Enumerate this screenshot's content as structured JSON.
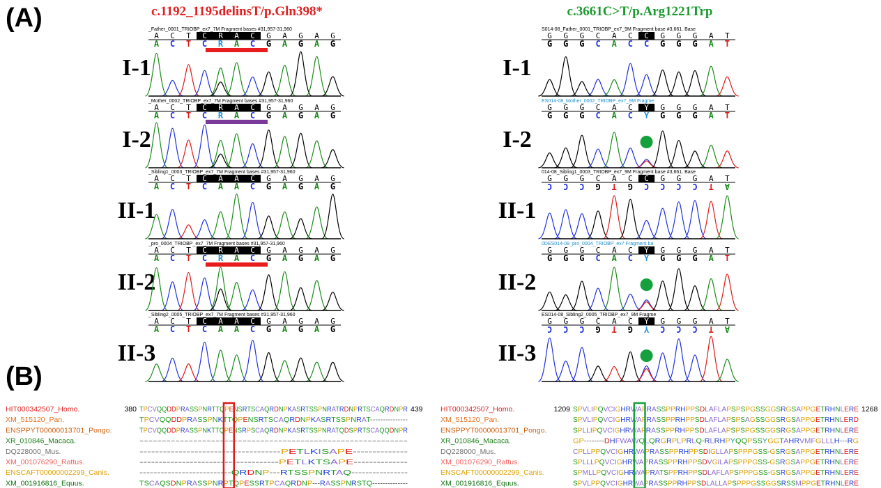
{
  "panel_a": {
    "label": "(A)",
    "left": {
      "title": "c.1192_1195delinsT/p.Gln398*",
      "tracks": [
        {
          "individual": "I-1",
          "header": "_Father_0001_TRIOBP_ex7_7M Fragment bases #31,957-31,960",
          "ref_bases": [
            "A",
            "C",
            "T",
            "C",
            "R",
            "A",
            "C",
            "G",
            "A",
            "G",
            "A",
            "G"
          ],
          "call_bases": [
            "A",
            "C",
            "T",
            "C",
            "R",
            "A",
            "C",
            "G",
            "A",
            "G",
            "A",
            "G"
          ]
        },
        {
          "individual": "I-2",
          "header": "_Mother_0002_TRIOBP_ex7_7M Fragment bases #31,957-31,960",
          "ref_bases": [
            "A",
            "C",
            "T",
            "C",
            "R",
            "A",
            "C",
            "G",
            "A",
            "G",
            "A",
            "G"
          ],
          "call_bases": [
            "A",
            "C",
            "T",
            "C",
            "R",
            "A",
            "C",
            "G",
            "A",
            "G",
            "A",
            "G"
          ]
        },
        {
          "individual": "II-1",
          "header": "_Sibling1_0003_TRIOBP_ex7_7M Fragment bases #31,957-31,960",
          "ref_bases": [
            "A",
            "C",
            "T",
            "C",
            "A",
            "A",
            "C",
            "G",
            "A",
            "G",
            "A",
            "G"
          ],
          "call_bases": [
            "A",
            "C",
            "T",
            "C",
            "A",
            "A",
            "C",
            "G",
            "A",
            "G",
            "A",
            "G"
          ]
        },
        {
          "individual": "II-2",
          "header": "_pro_0004_TRIOBP_ex7_7M Fragment bases #31,957-31,960",
          "ref_bases": [
            "A",
            "C",
            "T",
            "C",
            "R",
            "A",
            "C",
            "G",
            "A",
            "G",
            "A",
            "G"
          ],
          "call_bases": [
            "A",
            "C",
            "T",
            "C",
            "R",
            "A",
            "C",
            "G",
            "A",
            "G",
            "A",
            "G"
          ]
        },
        {
          "individual": "II-3",
          "header": "_Sibling2_0005_TRIOBP_ex7_7M Fragment bases #31,957-31,960",
          "ref_bases": [
            "A",
            "C",
            "T",
            "C",
            "A",
            "A",
            "C",
            "G",
            "A",
            "G",
            "A",
            "G"
          ],
          "call_bases": [
            "A",
            "C",
            "T",
            "C",
            "A",
            "A",
            "C",
            "G",
            "A",
            "G",
            "A",
            "G"
          ]
        }
      ]
    },
    "right": {
      "title": "c.3661C>T/p.Arg1221Trp",
      "tracks": [
        {
          "individual": "I-1",
          "header": "S014-08_Father_0001_TRIOBP_ex7_9M Fragment base #3,661. Base",
          "ref_bases": [
            "G",
            "G",
            "G",
            "C",
            "A",
            "C",
            "C",
            "G",
            "G",
            "G",
            "A",
            "T"
          ],
          "call_bases": [
            "G",
            "G",
            "G",
            "C",
            "A",
            "C",
            "C",
            "G",
            "G",
            "G",
            "A",
            "T"
          ]
        },
        {
          "individual": "I-2",
          "header": "ES014-08_Mother_0002_TRIOBP_ex7_9M Fragme",
          "ref_bases": [
            "G",
            "G",
            "G",
            "C",
            "A",
            "C",
            "Y",
            "G",
            "G",
            "G",
            "A",
            "T"
          ],
          "call_bases": [
            "G",
            "G",
            "G",
            "C",
            "A",
            "C",
            "Y",
            "G",
            "G",
            "G",
            "A",
            "T"
          ]
        },
        {
          "individual": "II-1",
          "header": "014-08_Sibling1_0003_TRIOBP_ex7_9M Fragment base #3,661. Base",
          "ref_bases": [
            "G",
            "G",
            "G",
            "C",
            "A",
            "C",
            "C",
            "G",
            "G",
            "G",
            "A",
            "T"
          ],
          "call_bases": [
            "C",
            "C",
            "C",
            "G",
            "T",
            "G",
            "C",
            "C",
            "C",
            "C",
            "T",
            "A"
          ]
        },
        {
          "individual": "II-2",
          "header": "0DES014-08_pro_0004_TRIOBP_ex7 Fragment ba",
          "ref_bases": [
            "G",
            "G",
            "G",
            "C",
            "A",
            "C",
            "Y",
            "G",
            "G",
            "G",
            "A",
            "T"
          ],
          "call_bases": [
            "G",
            "G",
            "G",
            "C",
            "A",
            "C",
            "Y",
            "G",
            "G",
            "G",
            "A",
            "T"
          ]
        },
        {
          "individual": "II-3",
          "header": "ES014-08_Sibling2_0005_TRIOBP_ex7_9M Fragme",
          "ref_bases": [
            "G",
            "G",
            "G",
            "C",
            "A",
            "C",
            "Y",
            "G",
            "G",
            "G",
            "A",
            "T"
          ],
          "call_bases": [
            "C",
            "C",
            "C",
            "G",
            "T",
            "G",
            "Y",
            "C",
            "C",
            "C",
            "T",
            "A"
          ]
        }
      ]
    }
  },
  "panel_b": {
    "label": "(B)",
    "left": {
      "start": "380",
      "end": "439",
      "rows": [
        {
          "name": "HIT000342507_Homo.",
          "color": "#e02020",
          "seq": "TPCVQQDDPRASSPNRTTQPENSRTSCAQRDNPKASRTSSPNRATRDNPRTSCAQRDNPR"
        },
        {
          "name": "XM_515120_Pan.",
          "color": "#e07020",
          "seq": "TPCVQQDDPRASSPNKTTQPENSRTSCAQRDNPKASRTSSPNRAT---------------"
        },
        {
          "name": "ENSPPYT00000013701_Pongo.",
          "color": "#d06010",
          "seq": "TPCVQQDDPRASSPNKTTQPENSRPSCAQRDNPKASRTSSPNRATQDSPRTSCAQQDNPR"
        },
        {
          "name": "XR_010846_Macaca.",
          "color": "#208020",
          "seq": "------------------------------------------------------------"
        },
        {
          "name": "DQ228000_Mus.",
          "color": "#707070",
          "seq": "------------------------------------PETLKISAPE--------------"
        },
        {
          "name": "XM_001076290_Rattus.",
          "color": "#f06060",
          "seq": "------------------------------------PETLKTSAPE--------------"
        },
        {
          "name": "ENSCAFT00000002299_Canis.",
          "color": "#e0a000",
          "seq": "--------------------------QRDNP---RTSSPNRTAQ----------------"
        },
        {
          "name": "XM_001916816_Equus.",
          "color": "#107010",
          "seq": "TSCAQSDNPRASSPNRPTQPESSRTPCAQRDNP---RASSPNRSTQ--------------"
        }
      ]
    },
    "right": {
      "start": "1209",
      "end": "1268",
      "rows": [
        {
          "name": "HIT000342507_Homo.",
          "color": "#e02020",
          "seq": "SPVLIPQVCIGHRWAPRASSPPRHPPSDLAFLAPSPSPGSSGGSRGSAPPGETRHNLERE"
        },
        {
          "name": "XM_515120_Pan.",
          "color": "#e07020",
          "seq": "SPVLIPQVCIGHRWAPRASSPPRHPPSDLAFLAPSPSAGSSGGSRGSAPPGETRHNLERD"
        },
        {
          "name": "ENSPPYT00000013701_Pongo.",
          "color": "#d06010",
          "seq": "SPLLIPQVCIGHRWAPRASSPPRHPPSDLAFLAPSPSPGSSGGSRGSAPPGETRHNLERE"
        },
        {
          "name": "XR_010846_Macaca.",
          "color": "#208020",
          "seq": "GP--------DHFWAWQLQRGRPLPRLQ-RLRHPYQQPSSYGGTAHRVMFGLLLH---RG"
        },
        {
          "name": "DQ228000_Mus.",
          "color": "#707070",
          "seq": "CPLLPPQVCIGHRWAPRASSPPRHPPSDIGLLAPSPPPGSS-GSRGSAPPGETRHNLERE"
        },
        {
          "name": "XM_001076290_Rattus.",
          "color": "#f06060",
          "seq": "SPLLLPQVCIGHRWAPRASSPPRHPPSDVGILAPSPPPGSS-GSRGSAPPGETRHNLERE"
        },
        {
          "name": "ENSCAFT00000002299_Canis.",
          "color": "#e0a000",
          "seq": "SPMLLPQVCIGHRWAPRATSPPRHPPSDLAFLAPSPPPGSS-GSRGSAPPGETRHNLERE"
        },
        {
          "name": "XM_001916816_Equus.",
          "color": "#107010",
          "seq": "SPVLPPQVCIGHRWAPRASSPPRHPPSDLALLAPSPPPGSSGGSRSSMPPGETRHNLERE"
        }
      ]
    }
  }
}
